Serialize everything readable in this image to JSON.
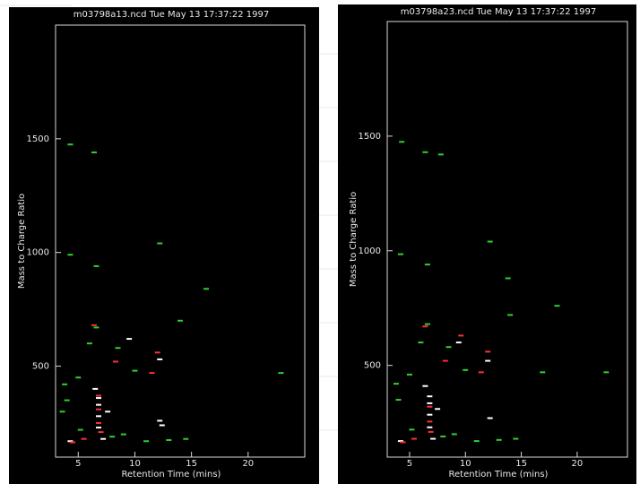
{
  "chart_data": [
    {
      "type": "scatter",
      "title": "m03798a13.ncd Tue May 13 17:37:22 1997",
      "x_label": "Retention Time (mins)",
      "y_label": "Mass to Charge Ratio",
      "xlim": [
        3,
        25
      ],
      "ylim": [
        100,
        2000
      ],
      "xticks": [
        5,
        10,
        15,
        20
      ],
      "yticks": [
        500,
        1000,
        1500
      ],
      "series": [
        {
          "color": "#ffffff",
          "x": [
            6.8,
            6.8,
            6.8,
            6.8,
            12.2,
            12.2,
            7.2,
            4.3,
            9.5,
            6.5,
            7.6,
            12.4
          ],
          "values": [
            230,
            280,
            330,
            360,
            260,
            530,
            180,
            170,
            620,
            400,
            300,
            240
          ]
        },
        {
          "color": "#ff3030",
          "x": [
            6.8,
            6.8,
            6.8,
            7.0,
            12.0,
            5.5,
            4.5,
            11.5,
            8.3,
            6.4
          ],
          "values": [
            250,
            310,
            370,
            210,
            560,
            180,
            165,
            470,
            520,
            680
          ]
        },
        {
          "color": "#30d030",
          "x": [
            4.3,
            6.4,
            12.2,
            4.3,
            6.6,
            16.3,
            14.0,
            6.6,
            8.5,
            5.0,
            10.0,
            3.8,
            4.0,
            11.0,
            13.0,
            8.0,
            9.0,
            22.9,
            5.2,
            6.0,
            14.5,
            3.6
          ],
          "values": [
            1475,
            1440,
            1040,
            990,
            940,
            840,
            700,
            670,
            580,
            450,
            480,
            420,
            350,
            170,
            175,
            190,
            200,
            470,
            220,
            600,
            180,
            300
          ]
        }
      ]
    },
    {
      "type": "scatter",
      "title": "m03798a23.ncd Tue May 13 17:37:22 1997",
      "x_label": "Retention Time (mins)",
      "y_label": "Mass to Charge Ratio",
      "xlim": [
        3,
        24.5
      ],
      "ylim": [
        100,
        2000
      ],
      "xticks": [
        5,
        10,
        15,
        20
      ],
      "yticks": [
        500,
        1000,
        1500
      ],
      "series": [
        {
          "color": "#ffffff",
          "x": [
            6.8,
            6.8,
            6.8,
            6.8,
            12.2,
            12.0,
            7.1,
            4.2,
            9.4,
            6.4,
            7.5
          ],
          "values": [
            230,
            285,
            335,
            365,
            270,
            520,
            180,
            170,
            600,
            410,
            310
          ]
        },
        {
          "color": "#ff3030",
          "x": [
            6.8,
            6.8,
            6.9,
            12.0,
            5.4,
            4.4,
            11.4,
            8.2,
            6.4,
            9.6
          ],
          "values": [
            255,
            320,
            210,
            560,
            180,
            165,
            470,
            520,
            670,
            630
          ]
        },
        {
          "color": "#30d030",
          "x": [
            4.3,
            6.4,
            12.2,
            4.2,
            6.6,
            14.0,
            6.6,
            8.5,
            5.0,
            10.0,
            3.8,
            4.0,
            11.0,
            13.0,
            8.0,
            9.0,
            22.6,
            5.2,
            6.0,
            14.5,
            7.8,
            13.8,
            18.2,
            16.9
          ],
          "values": [
            1475,
            1430,
            1040,
            985,
            940,
            720,
            680,
            580,
            460,
            480,
            420,
            350,
            170,
            175,
            190,
            200,
            470,
            220,
            600,
            180,
            1420,
            880,
            760,
            470
          ]
        }
      ]
    }
  ]
}
